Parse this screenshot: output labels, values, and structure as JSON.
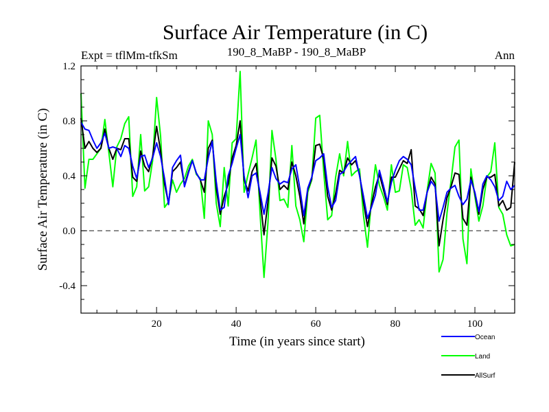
{
  "chart_data": {
    "type": "line",
    "title": "Surface Air Temperature (in C)",
    "subtitle_left": "Expt = tflMm-tfkSm",
    "subtitle_center": "190_8_MaBP - 190_8_MaBP",
    "subtitle_right": "Ann",
    "xlabel": "Time (in years since start)",
    "ylabel": "Surface Air Temperature (in C)",
    "xlim": [
      1,
      110
    ],
    "ylim": [
      -0.6,
      1.2
    ],
    "xticks": [
      20,
      40,
      60,
      80,
      100
    ],
    "xtick_labels": [
      "20",
      "40",
      "60",
      "80",
      "100"
    ],
    "yticks": [
      -0.4,
      0.0,
      0.4,
      0.8,
      1.2
    ],
    "ytick_labels": [
      "-0.4",
      "0.0",
      "0.4",
      "0.8",
      "1.2"
    ],
    "reference_line": 0.0,
    "legend_position": "bottom-right",
    "x": [
      1,
      2,
      3,
      4,
      5,
      6,
      7,
      8,
      9,
      10,
      11,
      12,
      13,
      14,
      15,
      16,
      17,
      18,
      19,
      20,
      21,
      22,
      23,
      24,
      25,
      26,
      27,
      28,
      29,
      30,
      31,
      32,
      33,
      34,
      35,
      36,
      37,
      38,
      39,
      40,
      41,
      42,
      43,
      44,
      45,
      46,
      47,
      48,
      49,
      50,
      51,
      52,
      53,
      54,
      55,
      56,
      57,
      58,
      59,
      60,
      61,
      62,
      63,
      64,
      65,
      66,
      67,
      68,
      69,
      70,
      71,
      72,
      73,
      74,
      75,
      76,
      77,
      78,
      79,
      80,
      81,
      82,
      83,
      84,
      85,
      86,
      87,
      88,
      89,
      90,
      91,
      92,
      93,
      94,
      95,
      96,
      97,
      98,
      99,
      100,
      101,
      102,
      103,
      104,
      105,
      106,
      107,
      108,
      109,
      110
    ],
    "series": [
      {
        "name": "Ocean",
        "color": "#0000ff",
        "values": [
          0.79,
          0.74,
          0.73,
          0.66,
          0.6,
          0.64,
          0.71,
          0.6,
          0.61,
          0.6,
          0.54,
          0.62,
          0.6,
          0.47,
          0.38,
          0.54,
          0.55,
          0.46,
          0.53,
          0.64,
          0.54,
          0.38,
          0.19,
          0.46,
          0.51,
          0.55,
          0.32,
          0.42,
          0.51,
          0.42,
          0.37,
          0.37,
          0.53,
          0.65,
          0.36,
          0.15,
          0.17,
          0.4,
          0.49,
          0.6,
          0.7,
          0.4,
          0.24,
          0.4,
          0.42,
          0.28,
          0.12,
          0.27,
          0.46,
          0.38,
          0.34,
          0.36,
          0.35,
          0.45,
          0.48,
          0.31,
          0.11,
          0.31,
          0.39,
          0.51,
          0.53,
          0.56,
          0.32,
          0.17,
          0.22,
          0.41,
          0.43,
          0.48,
          0.51,
          0.54,
          0.4,
          0.25,
          0.09,
          0.17,
          0.26,
          0.44,
          0.33,
          0.21,
          0.35,
          0.44,
          0.51,
          0.54,
          0.52,
          0.48,
          0.31,
          0.15,
          0.15,
          0.28,
          0.36,
          0.32,
          0.07,
          0.17,
          0.28,
          0.31,
          0.33,
          0.25,
          0.19,
          0.23,
          0.37,
          0.28,
          0.14,
          0.34,
          0.4,
          0.37,
          0.32,
          0.22,
          0.25,
          0.36,
          0.3,
          0.33
        ]
      },
      {
        "name": "Land",
        "color": "#00ff00",
        "values": [
          1.0,
          0.31,
          0.52,
          0.52,
          0.56,
          0.6,
          0.81,
          0.57,
          0.32,
          0.61,
          0.67,
          0.78,
          0.83,
          0.25,
          0.32,
          0.7,
          0.29,
          0.32,
          0.51,
          0.97,
          0.69,
          0.17,
          0.21,
          0.37,
          0.28,
          0.34,
          0.38,
          0.47,
          0.52,
          0.41,
          0.38,
          0.09,
          0.8,
          0.7,
          0.2,
          0.03,
          0.46,
          0.18,
          0.64,
          0.67,
          1.16,
          0.28,
          0.41,
          0.53,
          0.66,
          0.13,
          -0.34,
          0.06,
          0.73,
          0.52,
          0.22,
          0.23,
          0.17,
          0.62,
          0.18,
          0.08,
          -0.08,
          0.28,
          0.37,
          0.82,
          0.84,
          0.43,
          0.08,
          0.11,
          0.39,
          0.56,
          0.4,
          0.65,
          0.4,
          0.43,
          0.45,
          0.11,
          -0.12,
          0.23,
          0.48,
          0.33,
          0.25,
          0.15,
          0.48,
          0.28,
          0.29,
          0.48,
          0.46,
          0.3,
          0.04,
          0.08,
          0.02,
          0.29,
          0.49,
          0.42,
          -0.3,
          -0.21,
          0.13,
          0.36,
          0.61,
          0.66,
          -0.06,
          -0.24,
          0.45,
          0.25,
          0.07,
          0.18,
          0.39,
          0.43,
          0.64,
          0.17,
          0.12,
          -0.03,
          -0.11,
          -0.1
        ]
      },
      {
        "name": "AllSurf",
        "color": "#000000",
        "values": [
          0.82,
          0.6,
          0.65,
          0.6,
          0.57,
          0.6,
          0.74,
          0.6,
          0.52,
          0.6,
          0.59,
          0.67,
          0.67,
          0.39,
          0.36,
          0.58,
          0.47,
          0.43,
          0.54,
          0.76,
          0.58,
          0.34,
          0.2,
          0.43,
          0.46,
          0.5,
          0.33,
          0.43,
          0.51,
          0.42,
          0.37,
          0.28,
          0.6,
          0.66,
          0.31,
          0.12,
          0.25,
          0.34,
          0.53,
          0.62,
          0.8,
          0.37,
          0.29,
          0.43,
          0.49,
          0.24,
          -0.03,
          0.21,
          0.53,
          0.47,
          0.3,
          0.33,
          0.3,
          0.5,
          0.4,
          0.25,
          0.05,
          0.3,
          0.38,
          0.62,
          0.63,
          0.52,
          0.25,
          0.15,
          0.27,
          0.44,
          0.42,
          0.53,
          0.48,
          0.51,
          0.41,
          0.21,
          0.03,
          0.19,
          0.32,
          0.41,
          0.3,
          0.19,
          0.39,
          0.39,
          0.45,
          0.51,
          0.49,
          0.59,
          0.18,
          0.16,
          0.11,
          0.28,
          0.39,
          0.34,
          -0.11,
          0.08,
          0.24,
          0.32,
          0.42,
          0.41,
          0.09,
          0.04,
          0.39,
          0.27,
          0.12,
          0.3,
          0.39,
          0.39,
          0.41,
          0.18,
          0.22,
          0.15,
          0.17,
          0.5
        ]
      }
    ]
  }
}
